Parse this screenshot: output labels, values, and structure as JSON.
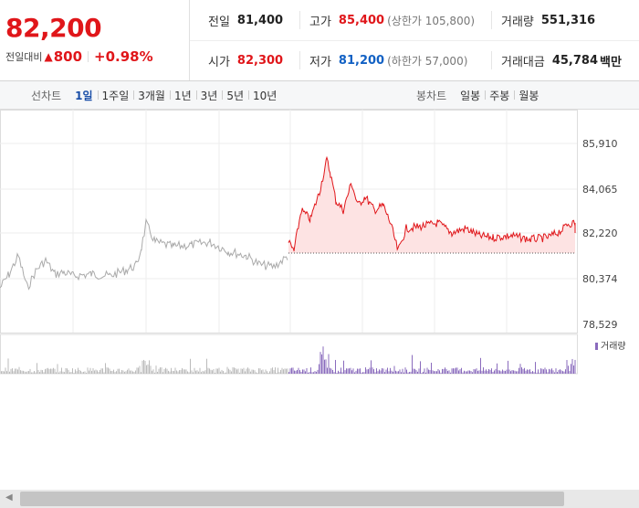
{
  "summary": {
    "current_price": "82,200",
    "change_label": "전일대비",
    "change_icon": "up-triangle-icon",
    "change_value": "800",
    "change_rate": "+0.98%",
    "prev_close_label": "전일",
    "prev_close": "81,400",
    "open_label": "시가",
    "open": "82,300",
    "high_label": "고가",
    "high": "85,400",
    "upper_limit": "(상한가 105,800)",
    "low_label": "저가",
    "low": "81,200",
    "lower_limit": "(하한가 57,000)",
    "volume_label": "거래량",
    "volume": "551,316",
    "amount_label": "거래대금",
    "amount": "45,784",
    "amount_unit": "백만"
  },
  "tabs": {
    "line_title": "선차트",
    "line_items": [
      "1일",
      "1주일",
      "3개월",
      "1년",
      "3년",
      "5년",
      "10년"
    ],
    "active_line": "1일",
    "candle_title": "봉차트",
    "candle_items": [
      "일봉",
      "주봉",
      "월봉"
    ]
  },
  "chart": {
    "y_ticks": [
      "85,910",
      "84,065",
      "82,220",
      "80,374",
      "78,529"
    ],
    "volume_legend": "거래량",
    "colors": {
      "up": "#e0161a",
      "fill": "#fde3e3",
      "prev_line": "#aaaaaa",
      "volume_today": "#8a6bbd",
      "volume_prev": "#bbbbbb",
      "baseline": "#555555"
    }
  }
}
